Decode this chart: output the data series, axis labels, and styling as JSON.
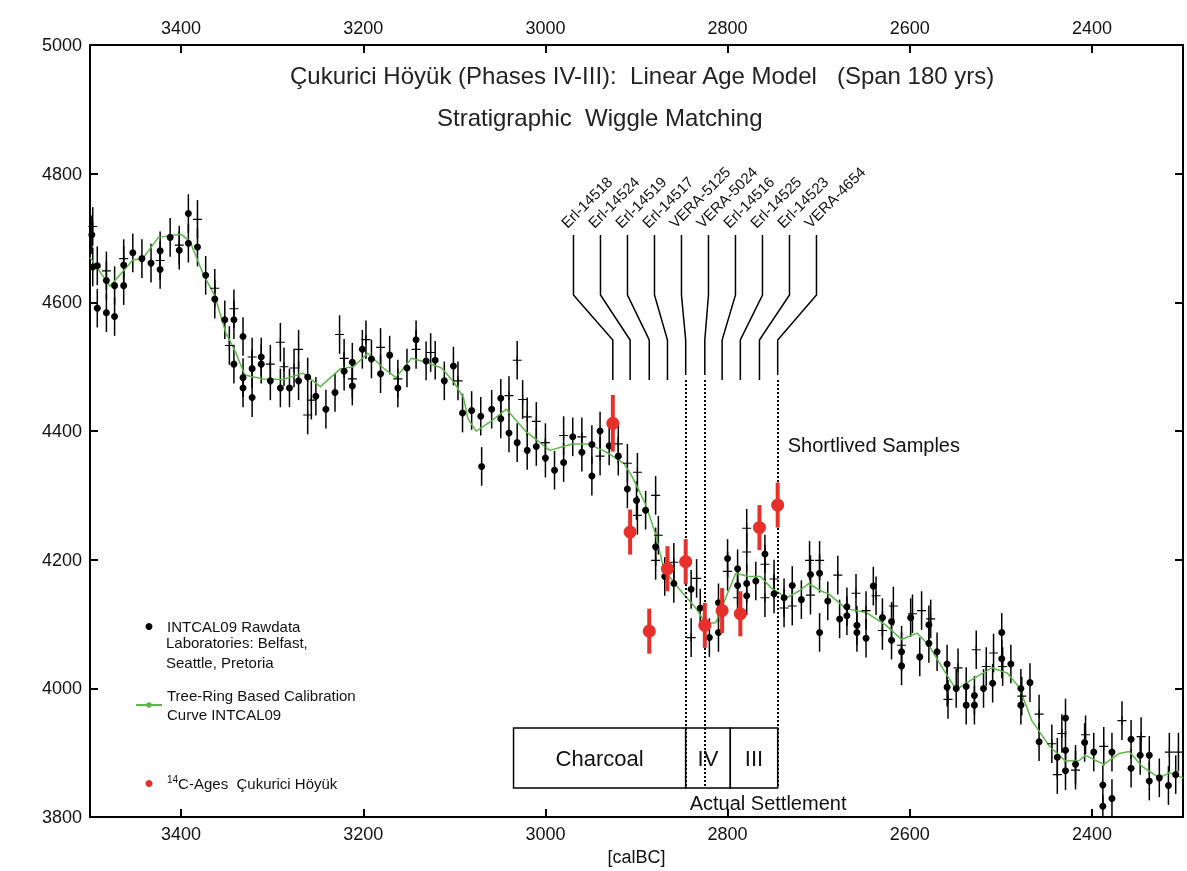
{
  "chart_data": {
    "type": "scatter",
    "title": "Çukurici Höyük (Phases IV-III):  Linear Age Model   (Span 180 yrs)",
    "subtitle": "Stratigraphic  Wiggle Matching",
    "xlabel": "[calBC]",
    "xlim": [
      3500,
      2300
    ],
    "xticks": [
      3400,
      3200,
      3000,
      2800,
      2600,
      2400
    ],
    "x2lim": [
      3500,
      2300
    ],
    "x2ticks": [
      3400,
      3200,
      3000,
      2800,
      2600,
      2400
    ],
    "ylim": [
      3800,
      5000
    ],
    "yticks": [
      3800,
      4000,
      4200,
      4400,
      4600,
      4800,
      5000
    ],
    "legend": "left",
    "annotations": [
      "Laboratories: Belfast, Seattle, Pretoria",
      "Shortlived Samples",
      "Actual Settlement",
      "Erl-14518",
      "Erl-14524",
      "Erl-14519",
      "Erl-14517",
      {
        "text": "VERA-5125",
        "x": 2846,
        "y": 4487
      },
      {
        "text": "VERA-5024",
        "x": 2825,
        "y": 4487
      },
      "Erl-14516",
      "Erl-14525",
      "Erl-14523",
      {
        "text": "VERA-4654",
        "x": 2745,
        "y": 4487
      }
    ],
    "bands": [
      {
        "axis": "x",
        "from": 3035,
        "to": 2846,
        "label": "Charcoal",
        "color": "#ffffff"
      },
      {
        "axis": "x",
        "from": 2846,
        "to": 2797,
        "label": "IV",
        "color": "#ffffff"
      },
      {
        "axis": "x",
        "from": 2797,
        "to": 2745,
        "label": "III",
        "color": "#ffffff"
      }
    ],
    "ref_lines": [
      {
        "axis": "x",
        "value": 2846,
        "line_style": "dotted"
      },
      {
        "axis": "x",
        "value": 2825,
        "line_style": "dotted"
      },
      {
        "axis": "x",
        "value": 2745,
        "line_style": "dotted"
      }
    ],
    "series": [
      {
        "name": "INTCAL09 Rawdata",
        "type": "scatter",
        "marker": "circle",
        "color": "#000000",
        "x": [
          3498,
          3497,
          3492,
          3492,
          3482,
          3482,
          3473,
          3473,
          3463,
          3463,
          3453,
          3443,
          3433,
          3423,
          3423,
          3412,
          3402,
          3392,
          3392,
          3382,
          3373,
          3363,
          3352,
          3342,
          3342,
          3332,
          3332,
          3332,
          3322,
          3322,
          3312,
          3312,
          3302,
          3291,
          3281,
          3271,
          3261,
          3252,
          3241,
          3231,
          3221,
          3212,
          3212,
          3201,
          3191,
          3181,
          3171,
          3162,
          3152,
          3142,
          3131,
          3121,
          3111,
          3101,
          3091,
          3081,
          3071,
          3070,
          3059,
          3049,
          3049,
          3040,
          3031,
          3020,
          3010,
          3000,
          2990,
          2980,
          2970,
          2960,
          2949,
          2949,
          2940,
          2930,
          2920,
          2910,
          2900,
          2890,
          2879,
          2869,
          2859,
          2840,
          2830,
          2820,
          2810,
          2810,
          2800,
          2789,
          2789,
          2779,
          2779,
          2769,
          2759,
          2749,
          2738,
          2729,
          2719,
          2709,
          2699,
          2699,
          2690,
          2677,
          2669,
          2669,
          2658,
          2658,
          2648,
          2640,
          2630,
          2620,
          2620,
          2609,
          2609,
          2599,
          2589,
          2579,
          2579,
          2570,
          2559,
          2559,
          2549,
          2538,
          2538,
          2529,
          2529,
          2519,
          2509,
          2499,
          2499,
          2489,
          2478,
          2478,
          2468,
          2458,
          2438,
          2429,
          2429,
          2429,
          2418,
          2408,
          2398,
          2388,
          2388,
          2378,
          2378,
          2357,
          2357,
          2347,
          2337,
          2337,
          2326,
          2316,
          2308
        ],
        "values": [
          4705,
          4655,
          4657,
          4591,
          4634,
          4584,
          4626,
          4578,
          4658,
          4626,
          4677,
          4668,
          4661,
          4680,
          4651,
          4701,
          4681,
          4738,
          4692,
          4686,
          4642,
          4605,
          4573,
          4573,
          4504,
          4547,
          4483,
          4467,
          4497,
          4452,
          4515,
          4504,
          4478,
          4467,
          4467,
          4478,
          4484,
          4454,
          4434,
          4460,
          4493,
          4470,
          4507,
          4527,
          4512,
          4489,
          4518,
          4467,
          4498,
          4542,
          4509,
          4510,
          4478,
          4501,
          4428,
          4432,
          4423,
          4345,
          4434,
          4451,
          4419,
          4397,
          4382,
          4370,
          4376,
          4358,
          4339,
          4351,
          4391,
          4367,
          4330,
          4379,
          4400,
          4377,
          4361,
          4310,
          4292,
          4277,
          4220,
          4174,
          4163,
          4154,
          4125,
          4079,
          4133,
          4087,
          4202,
          4186,
          4160,
          4163,
          4144,
          4167,
          4209,
          4147,
          4141,
          4160,
          4138,
          4177,
          4179,
          4087,
          4136,
          4108,
          4127,
          4113,
          4098,
          4087,
          4078,
          4159,
          4110,
          4104,
          4075,
          4057,
          4035,
          4110,
          4049,
          4099,
          4070,
          4057,
          4038,
          4002,
          4000,
          4003,
          3974,
          3989,
          3974,
          4000,
          4008,
          4087,
          4046,
          4038,
          4000,
          3974,
          4009,
          3917,
          3893,
          3954,
          3904,
          3872,
          3882,
          3916,
          3901,
          3850,
          3817,
          3901,
          3829,
          3921,
          3876,
          3896,
          3896,
          3856,
          3861,
          3849,
          3866
        ],
        "errors": [
          30,
          30,
          30,
          30,
          30,
          30,
          30,
          30,
          30,
          30,
          30,
          30,
          30,
          30,
          30,
          30,
          30,
          30,
          30,
          30,
          30,
          30,
          30,
          30,
          30,
          30,
          30,
          30,
          30,
          30,
          30,
          30,
          30,
          30,
          30,
          30,
          30,
          30,
          30,
          30,
          30,
          30,
          30,
          30,
          30,
          30,
          30,
          30,
          30,
          30,
          30,
          30,
          30,
          30,
          30,
          30,
          30,
          30,
          30,
          30,
          30,
          30,
          30,
          30,
          30,
          30,
          30,
          30,
          30,
          30,
          30,
          30,
          30,
          30,
          30,
          30,
          30,
          30,
          30,
          30,
          30,
          30,
          30,
          30,
          30,
          30,
          30,
          30,
          30,
          30,
          30,
          30,
          30,
          30,
          30,
          30,
          30,
          30,
          30,
          30,
          30,
          30,
          30,
          30,
          30,
          30,
          30,
          30,
          30,
          30,
          30,
          30,
          30,
          30,
          30,
          30,
          30,
          30,
          30,
          30,
          30,
          30,
          30,
          30,
          30,
          30,
          30,
          30,
          30,
          30,
          30,
          30,
          30,
          30,
          30,
          30,
          30,
          30,
          30,
          30,
          30,
          30,
          17,
          30,
          30,
          30,
          30,
          30,
          30,
          30,
          30,
          30,
          30
        ]
      },
      {
        "type": "scatter",
        "marker": "cross",
        "color": "#000000",
        "x": [
          3497,
          3482,
          3463,
          3423,
          3402,
          3382,
          3363,
          3347,
          3342,
          3322,
          3302,
          3291,
          3287,
          3276,
          3271,
          3261,
          3257,
          3226,
          3221,
          3212,
          3197,
          3181,
          3162,
          3142,
          3126,
          3096,
          3040,
          3031,
          3025,
          3020,
          3010,
          3000,
          2980,
          2960,
          2940,
          2920,
          2910,
          2899,
          2899,
          2879,
          2879,
          2876,
          2859,
          2840,
          2834,
          2800,
          2789,
          2779,
          2779,
          2759,
          2759,
          2749,
          2738,
          2729,
          2710,
          2709,
          2699,
          2679,
          2659,
          2648,
          2637,
          2630,
          2618,
          2609,
          2597,
          2587,
          2577,
          2558,
          2547,
          2527,
          2516,
          2508,
          2498,
          2477,
          2458,
          2444,
          2438,
          2433,
          2418,
          2407,
          2387,
          2367,
          2346,
          2315,
          2305
        ],
        "values": [
          4718,
          4649,
          4668,
          4665,
          4689,
          4729,
          4622,
          4533,
          4590,
          4515,
          4504,
          4538,
          4500,
          4498,
          4527,
          4425,
          4448,
          4550,
          4513,
          4481,
          4542,
          4530,
          4481,
          4527,
          4522,
          4478,
          4455,
          4510,
          4449,
          4422,
          4415,
          4382,
          4393,
          4391,
          4361,
          4380,
          4350,
          4336,
          4269,
          4300,
          4199,
          4238,
          4196,
          4079,
          4171,
          4182,
          4141,
          4249,
          4212,
          4193,
          4141,
          4170,
          4125,
          4128,
          4199,
          4145,
          4199,
          4176,
          4148,
          4121,
          4144,
          4090,
          4128,
          4067,
          4116,
          4121,
          4108,
          3983,
          4032,
          4060,
          4034,
          4055,
          4034,
          3988,
          3960,
          3914,
          3866,
          3930,
          3873,
          3928,
          3910,
          3950,
          3925,
          3901,
          3901
        ],
        "errors": [
          30,
          30,
          30,
          30,
          30,
          30,
          30,
          30,
          30,
          30,
          30,
          30,
          30,
          30,
          30,
          30,
          30,
          30,
          30,
          30,
          30,
          30,
          30,
          30,
          30,
          30,
          30,
          30,
          30,
          30,
          30,
          30,
          30,
          30,
          30,
          30,
          30,
          30,
          30,
          30,
          30,
          30,
          30,
          30,
          30,
          30,
          30,
          30,
          30,
          30,
          30,
          30,
          30,
          30,
          30,
          30,
          30,
          30,
          30,
          30,
          30,
          30,
          30,
          30,
          30,
          30,
          30,
          30,
          30,
          30,
          30,
          30,
          30,
          30,
          30,
          30,
          30,
          30,
          30,
          30,
          30,
          30,
          30,
          30,
          30
        ]
      },
      {
        "name": "Tree-Ring Based Calibration Curve INTCAL09",
        "type": "line",
        "color": "#5cb848",
        "x": [
          3500,
          3478,
          3453,
          3442,
          3425,
          3400,
          3390,
          3376,
          3363,
          3351,
          3340,
          3330,
          3310,
          3288,
          3266,
          3247,
          3225,
          3211,
          3195,
          3178,
          3164,
          3147,
          3131,
          3114,
          3101,
          3090,
          3085,
          3076,
          3059,
          3043,
          3022,
          2995,
          2971,
          2953,
          2934,
          2914,
          2905,
          2890,
          2879,
          2870,
          2854,
          2835,
          2824,
          2813,
          2802,
          2791,
          2777,
          2764,
          2752,
          2735,
          2722,
          2711,
          2697,
          2689,
          2670,
          2648,
          2626,
          2609,
          2592,
          2579,
          2565,
          2549,
          2535,
          2510,
          2493,
          2480,
          2466,
          2447,
          2429,
          2414,
          2407,
          2387,
          2370,
          2359,
          2345,
          2326,
          2315,
          2300
        ],
        "values": [
          4670,
          4625,
          4666,
          4668,
          4701,
          4706,
          4694,
          4645,
          4610,
          4553,
          4522,
          4487,
          4481,
          4480,
          4490,
          4469,
          4497,
          4500,
          4521,
          4498,
          4483,
          4513,
          4507,
          4498,
          4477,
          4452,
          4419,
          4400,
          4416,
          4434,
          4400,
          4370,
          4380,
          4380,
          4368,
          4350,
          4330,
          4286,
          4240,
          4185,
          4156,
          4125,
          4101,
          4102,
          4141,
          4179,
          4174,
          4174,
          4156,
          4141,
          4151,
          4163,
          4151,
          4147,
          4124,
          4118,
          4098,
          4076,
          4086,
          4067,
          4034,
          3998,
          4011,
          4032,
          4024,
          4002,
          3950,
          3911,
          3887,
          3888,
          3896,
          3882,
          3899,
          3902,
          3879,
          3861,
          3869,
          3861
        ]
      },
      {
        "name": "$^{14}$C-Ages  Çukurici Höyük",
        "type": "scatter",
        "marker": "circle",
        "color": "#e8302a",
        "x": [
          2926,
          2907,
          2886,
          2866,
          2846,
          2825,
          2806,
          2786,
          2765,
          2745
        ],
        "values": [
          4412,
          4243,
          4089,
          4186,
          4197,
          4098,
          4121,
          4116,
          4250,
          4285
        ],
        "errors": [
          44,
          35,
          35,
          35,
          35,
          35,
          35,
          35,
          35,
          35
        ]
      }
    ]
  }
}
